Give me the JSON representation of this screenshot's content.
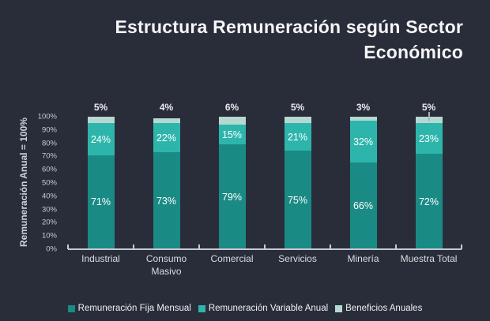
{
  "title": "Estructura Remuneración según Sector Económico",
  "colors": {
    "background": "#292d39",
    "title_text": "#f5f5f7",
    "axis_text": "#c6cad3",
    "axis_line": "#c6cad3",
    "category_text": "#d9dce2",
    "top_label_text": "#e9ebef"
  },
  "chart_data": {
    "type": "bar",
    "stacked": true,
    "title": "Estructura Remuneración según Sector Económico",
    "categories": [
      "Industrial",
      "Consumo Masivo",
      "Comercial",
      "Servicios",
      "Minería",
      "Muestra Total"
    ],
    "series": [
      {
        "name": "Remuneración Fija Mensual",
        "color": "#1a8a85",
        "label_position": "inside",
        "values": [
          71,
          73,
          79,
          75,
          66,
          72
        ]
      },
      {
        "name": "Remuneración Variable Anual",
        "color": "#2eb5ab",
        "label_position": "inside",
        "values": [
          24,
          22,
          15,
          21,
          32,
          23
        ]
      },
      {
        "name": "Beneficios Anuales",
        "color": "#b5d8d2",
        "label_position": "above",
        "values": [
          5,
          4,
          6,
          5,
          3,
          5
        ]
      }
    ],
    "ylabel": "Remuneración Anual = 100%",
    "yticks": [
      "0%",
      "10%",
      "20%",
      "30%",
      "40%",
      "50%",
      "60%",
      "70%",
      "80%",
      "90%",
      "100%"
    ],
    "ylim": [
      0,
      100
    ],
    "grid": false,
    "legend_position": "bottom",
    "value_suffix": "%",
    "top_label_leader_indices": [
      5
    ]
  }
}
